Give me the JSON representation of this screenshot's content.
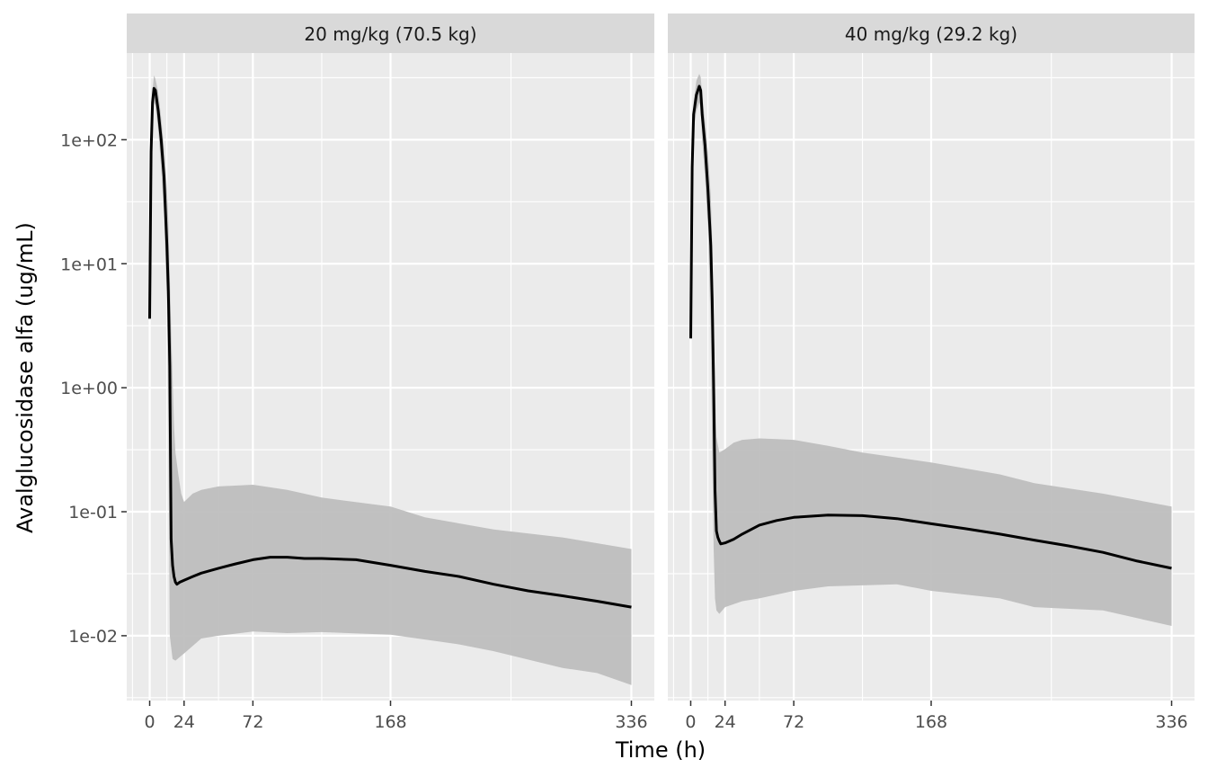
{
  "chart_data": {
    "type": "area",
    "xlabel": "Time (h)",
    "ylabel": "Avalglucosidase alfa (ug/mL)",
    "yscale": "log10",
    "ylim": [
      0.003,
      500
    ],
    "xlim": [
      -16,
      352
    ],
    "x_ticks": [
      0,
      24,
      72,
      168,
      336
    ],
    "y_ticks": [
      {
        "value": 0.01,
        "label": "1e-02"
      },
      {
        "value": 0.1,
        "label": "1e-01"
      },
      {
        "value": 1,
        "label": "1e+00"
      },
      {
        "value": 10,
        "label": "1e+01"
      },
      {
        "value": 100,
        "label": "1e+02"
      }
    ],
    "grid": true,
    "colors": {
      "panel_bg": "#ebebeb",
      "grid": "#ffffff",
      "strip_bg": "#d9d9d9",
      "ribbon": "#bebebe",
      "line": "#000000"
    },
    "panels": [
      {
        "title": "20 mg/kg (70.5 kg)",
        "median": [
          [
            0,
            3.6
          ],
          [
            1,
            80
          ],
          [
            2,
            200
          ],
          [
            3,
            260
          ],
          [
            4,
            250
          ],
          [
            6,
            170
          ],
          [
            8,
            100
          ],
          [
            10,
            50
          ],
          [
            12,
            14
          ],
          [
            13,
            6
          ],
          [
            14,
            1.5
          ],
          [
            15,
            0.06
          ],
          [
            16,
            0.037
          ],
          [
            17,
            0.03
          ],
          [
            18,
            0.027
          ],
          [
            19,
            0.026
          ],
          [
            21,
            0.027
          ],
          [
            24,
            0.028
          ],
          [
            30,
            0.03
          ],
          [
            36,
            0.032
          ],
          [
            48,
            0.035
          ],
          [
            60,
            0.038
          ],
          [
            72,
            0.041
          ],
          [
            84,
            0.043
          ],
          [
            96,
            0.043
          ],
          [
            108,
            0.042
          ],
          [
            120,
            0.042
          ],
          [
            144,
            0.041
          ],
          [
            168,
            0.037
          ],
          [
            192,
            0.033
          ],
          [
            216,
            0.03
          ],
          [
            240,
            0.026
          ],
          [
            264,
            0.023
          ],
          [
            288,
            0.021
          ],
          [
            312,
            0.019
          ],
          [
            336,
            0.017
          ]
        ],
        "ribbon_upper": [
          [
            0,
            3.6
          ],
          [
            1,
            100
          ],
          [
            2,
            250
          ],
          [
            3,
            330
          ],
          [
            4,
            310
          ],
          [
            6,
            240
          ],
          [
            8,
            150
          ],
          [
            10,
            85
          ],
          [
            12,
            40
          ],
          [
            13,
            22
          ],
          [
            14,
            8
          ],
          [
            15,
            3
          ],
          [
            16,
            1.2
          ],
          [
            17,
            0.5
          ],
          [
            18,
            0.3
          ],
          [
            20,
            0.2
          ],
          [
            22,
            0.14
          ],
          [
            24,
            0.12
          ],
          [
            30,
            0.14
          ],
          [
            36,
            0.15
          ],
          [
            48,
            0.16
          ],
          [
            72,
            0.165
          ],
          [
            96,
            0.15
          ],
          [
            120,
            0.13
          ],
          [
            168,
            0.11
          ],
          [
            192,
            0.09
          ],
          [
            240,
            0.072
          ],
          [
            288,
            0.062
          ],
          [
            336,
            0.05
          ]
        ],
        "ribbon_lower": [
          [
            0,
            3.6
          ],
          [
            1,
            60
          ],
          [
            2,
            160
          ],
          [
            3,
            200
          ],
          [
            4,
            190
          ],
          [
            6,
            120
          ],
          [
            8,
            60
          ],
          [
            10,
            25
          ],
          [
            12,
            5
          ],
          [
            13,
            0.5
          ],
          [
            14,
            0.01
          ],
          [
            16,
            0.0065
          ],
          [
            18,
            0.0063
          ],
          [
            24,
            0.0072
          ],
          [
            36,
            0.0095
          ],
          [
            48,
            0.01
          ],
          [
            72,
            0.0108
          ],
          [
            96,
            0.0105
          ],
          [
            120,
            0.0107
          ],
          [
            168,
            0.0102
          ],
          [
            216,
            0.0085
          ],
          [
            240,
            0.0075
          ],
          [
            288,
            0.0055
          ],
          [
            312,
            0.005
          ],
          [
            336,
            0.004
          ]
        ]
      },
      {
        "title": "40 mg/kg (29.2 kg)",
        "median": [
          [
            0,
            2.5
          ],
          [
            1,
            60
          ],
          [
            2,
            160
          ],
          [
            4,
            230
          ],
          [
            6,
            270
          ],
          [
            7,
            250
          ],
          [
            8,
            160
          ],
          [
            10,
            90
          ],
          [
            12,
            40
          ],
          [
            14,
            14
          ],
          [
            15,
            5
          ],
          [
            16,
            1
          ],
          [
            17,
            0.15
          ],
          [
            18,
            0.07
          ],
          [
            19,
            0.062
          ],
          [
            20,
            0.058
          ],
          [
            21,
            0.055
          ],
          [
            24,
            0.056
          ],
          [
            30,
            0.06
          ],
          [
            36,
            0.066
          ],
          [
            48,
            0.078
          ],
          [
            60,
            0.085
          ],
          [
            72,
            0.09
          ],
          [
            96,
            0.094
          ],
          [
            120,
            0.093
          ],
          [
            144,
            0.088
          ],
          [
            168,
            0.08
          ],
          [
            192,
            0.073
          ],
          [
            216,
            0.066
          ],
          [
            240,
            0.059
          ],
          [
            264,
            0.053
          ],
          [
            288,
            0.047
          ],
          [
            312,
            0.04
          ],
          [
            336,
            0.035
          ]
        ],
        "ribbon_upper": [
          [
            0,
            2.5
          ],
          [
            1,
            80
          ],
          [
            2,
            200
          ],
          [
            4,
            300
          ],
          [
            6,
            340
          ],
          [
            7,
            320
          ],
          [
            8,
            230
          ],
          [
            10,
            140
          ],
          [
            12,
            80
          ],
          [
            14,
            35
          ],
          [
            15,
            15
          ],
          [
            16,
            4
          ],
          [
            17,
            1
          ],
          [
            18,
            0.4
          ],
          [
            20,
            0.3
          ],
          [
            24,
            0.32
          ],
          [
            30,
            0.36
          ],
          [
            36,
            0.38
          ],
          [
            48,
            0.39
          ],
          [
            60,
            0.385
          ],
          [
            72,
            0.38
          ],
          [
            96,
            0.34
          ],
          [
            120,
            0.3
          ],
          [
            168,
            0.25
          ],
          [
            216,
            0.2
          ],
          [
            240,
            0.17
          ],
          [
            288,
            0.14
          ],
          [
            336,
            0.11
          ]
        ],
        "ribbon_lower": [
          [
            0,
            2.5
          ],
          [
            1,
            40
          ],
          [
            2,
            120
          ],
          [
            4,
            170
          ],
          [
            6,
            200
          ],
          [
            7,
            180
          ],
          [
            8,
            100
          ],
          [
            10,
            50
          ],
          [
            12,
            20
          ],
          [
            14,
            3
          ],
          [
            15,
            0.3
          ],
          [
            16,
            0.05
          ],
          [
            17,
            0.02
          ],
          [
            18,
            0.016
          ],
          [
            20,
            0.015
          ],
          [
            24,
            0.017
          ],
          [
            36,
            0.019
          ],
          [
            48,
            0.02
          ],
          [
            72,
            0.023
          ],
          [
            96,
            0.025
          ],
          [
            144,
            0.026
          ],
          [
            168,
            0.023
          ],
          [
            216,
            0.02
          ],
          [
            240,
            0.017
          ],
          [
            288,
            0.016
          ],
          [
            336,
            0.012
          ]
        ]
      }
    ]
  }
}
